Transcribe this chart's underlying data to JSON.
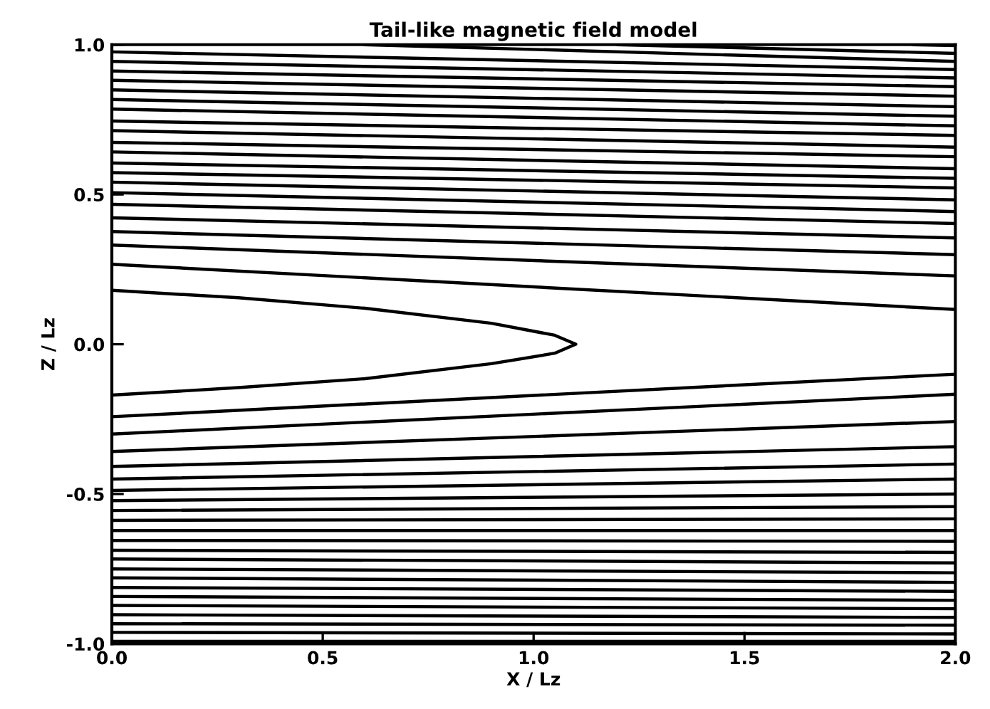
{
  "chart_data": {
    "type": "line",
    "title": "Tail-like magnetic field model",
    "xlabel": "X / Lz",
    "ylabel": "Z / Lz",
    "color": "#000000",
    "marker": "none",
    "line_style": "solid",
    "xlim": [
      0,
      2
    ],
    "ylim": [
      -1,
      1
    ],
    "xticks": [
      {
        "value": 0,
        "label": "0.0"
      },
      {
        "value": 0.5,
        "label": "0.5"
      },
      {
        "value": 1,
        "label": "1.0"
      },
      {
        "value": 1.5,
        "label": "1.5"
      },
      {
        "value": 2,
        "label": "2.0"
      }
    ],
    "yticks": [
      {
        "value": -1,
        "label": "-1.0"
      },
      {
        "value": -0.5,
        "label": "-0.5"
      },
      {
        "value": 0,
        "label": "0.0"
      },
      {
        "value": 0.5,
        "label": "0.5"
      },
      {
        "value": 1,
        "label": "1.0"
      }
    ],
    "series": [
      {
        "x": [
          0,
          0.3,
          0.6,
          0.9,
          1.05,
          1.1,
          1.05,
          0.9,
          0.6,
          0.3,
          0
        ],
        "values": [
          0.18,
          0.155,
          0.12,
          0.07,
          0.03,
          0,
          -0.03,
          -0.065,
          -0.115,
          -0.145,
          -0.17
        ]
      },
      {
        "x": [
          0,
          2
        ],
        "values": [
          0.267,
          0.116
        ]
      },
      {
        "x": [
          0,
          2
        ],
        "values": [
          0.331,
          0.228
        ]
      },
      {
        "x": [
          0,
          2
        ],
        "values": [
          0.376,
          0.299
        ]
      },
      {
        "x": [
          0,
          2
        ],
        "values": [
          0.422,
          0.355
        ]
      },
      {
        "x": [
          0,
          2
        ],
        "values": [
          0.467,
          0.403
        ]
      },
      {
        "x": [
          0,
          2
        ],
        "values": [
          0.506,
          0.443
        ]
      },
      {
        "x": [
          0,
          2
        ],
        "values": [
          0.541,
          0.482
        ]
      },
      {
        "x": [
          0,
          2
        ],
        "values": [
          0.573,
          0.522
        ]
      },
      {
        "x": [
          0,
          2
        ],
        "values": [
          0.605,
          0.554
        ]
      },
      {
        "x": [
          0,
          2
        ],
        "values": [
          0.642,
          0.586
        ]
      },
      {
        "x": [
          0,
          2
        ],
        "values": [
          0.674,
          0.626
        ]
      },
      {
        "x": [
          0,
          2
        ],
        "values": [
          0.713,
          0.658
        ]
      },
      {
        "x": [
          0,
          2
        ],
        "values": [
          0.745,
          0.697
        ]
      },
      {
        "x": [
          0,
          2
        ],
        "values": [
          0.785,
          0.729
        ]
      },
      {
        "x": [
          0,
          2
        ],
        "values": [
          0.817,
          0.761
        ]
      },
      {
        "x": [
          0,
          2
        ],
        "values": [
          0.849,
          0.793
        ]
      },
      {
        "x": [
          0,
          2
        ],
        "values": [
          0.881,
          0.828
        ]
      },
      {
        "x": [
          0,
          2
        ],
        "values": [
          0.912,
          0.86
        ]
      },
      {
        "x": [
          0,
          2
        ],
        "values": [
          0.944,
          0.889
        ]
      },
      {
        "x": [
          0,
          2
        ],
        "values": [
          0.976,
          0.917
        ]
      },
      {
        "x": [
          0.6,
          2
        ],
        "values": [
          1.0,
          0.944
        ]
      },
      {
        "x": [
          1.2,
          2
        ],
        "values": [
          1.0,
          0.971
        ]
      },
      {
        "x": [
          1.9,
          2
        ],
        "values": [
          1.0,
          0.997
        ]
      },
      {
        "x": [
          0,
          2
        ],
        "values": [
          -0.242,
          -0.1
        ]
      },
      {
        "x": [
          0,
          2
        ],
        "values": [
          -0.3,
          -0.167
        ]
      },
      {
        "x": [
          0,
          2
        ],
        "values": [
          -0.358,
          -0.258
        ]
      },
      {
        "x": [
          0,
          2
        ],
        "values": [
          -0.408,
          -0.342
        ]
      },
      {
        "x": [
          0,
          2
        ],
        "values": [
          -0.45,
          -0.4
        ]
      },
      {
        "x": [
          0,
          2
        ],
        "values": [
          -0.488,
          -0.45
        ]
      },
      {
        "x": [
          0,
          2
        ],
        "values": [
          -0.522,
          -0.5
        ]
      },
      {
        "x": [
          0,
          2
        ],
        "values": [
          -0.555,
          -0.542
        ]
      },
      {
        "x": [
          0,
          2
        ],
        "values": [
          -0.588,
          -0.583
        ]
      },
      {
        "x": [
          0,
          2
        ],
        "values": [
          -0.622,
          -0.622
        ]
      },
      {
        "x": [
          0,
          2
        ],
        "values": [
          -0.655,
          -0.658
        ]
      },
      {
        "x": [
          0,
          2
        ],
        "values": [
          -0.688,
          -0.695
        ]
      },
      {
        "x": [
          0,
          2
        ],
        "values": [
          -0.717,
          -0.73
        ]
      },
      {
        "x": [
          0,
          2
        ],
        "values": [
          -0.75,
          -0.763
        ]
      },
      {
        "x": [
          0,
          2
        ],
        "values": [
          -0.78,
          -0.795
        ]
      },
      {
        "x": [
          0,
          2
        ],
        "values": [
          -0.812,
          -0.825
        ]
      },
      {
        "x": [
          0,
          2
        ],
        "values": [
          -0.842,
          -0.855
        ]
      },
      {
        "x": [
          0,
          2
        ],
        "values": [
          -0.872,
          -0.883
        ]
      },
      {
        "x": [
          0,
          2
        ],
        "values": [
          -0.903,
          -0.912
        ]
      },
      {
        "x": [
          0,
          2
        ],
        "values": [
          -0.933,
          -0.938
        ]
      },
      {
        "x": [
          0,
          2
        ],
        "values": [
          -0.962,
          -0.967
        ]
      },
      {
        "x": [
          0,
          2
        ],
        "values": [
          -0.992,
          -0.992
        ]
      }
    ]
  }
}
